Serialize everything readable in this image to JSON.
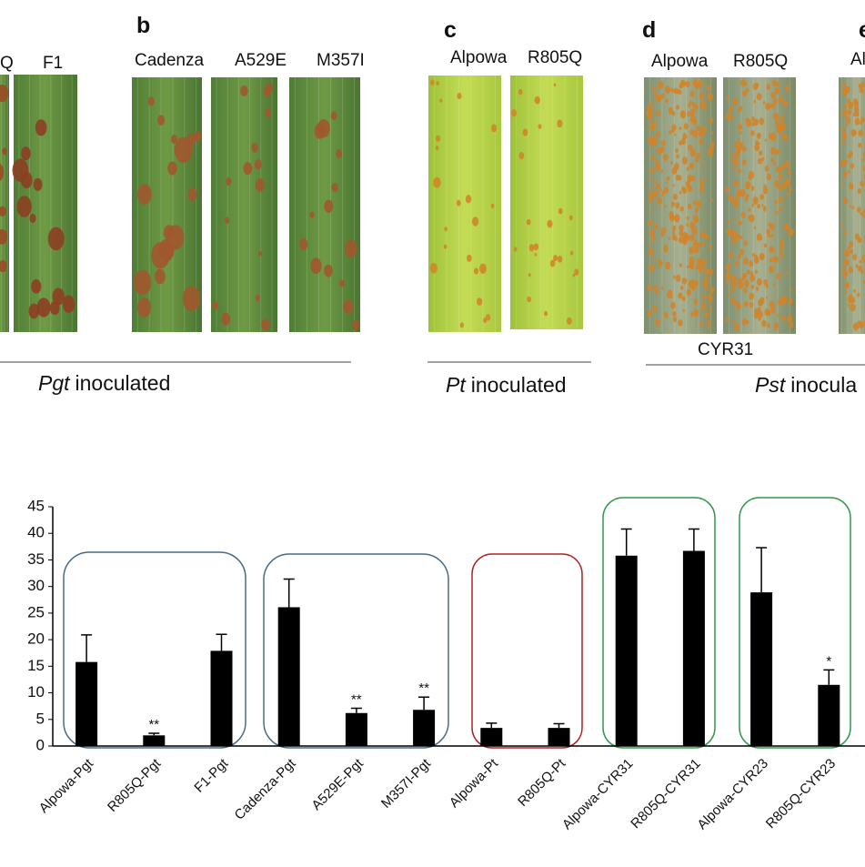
{
  "panels": [
    {
      "labels": [
        "Q",
        "F1"
      ]
    },
    {
      "letter": "b",
      "labels": [
        "Cadenza",
        "A529E",
        "M357I"
      ]
    },
    {
      "letter": "c",
      "labels": [
        "Alpowa",
        "R805Q"
      ]
    },
    {
      "letter": "d",
      "labels": [
        "Alpowa",
        "R805Q"
      ],
      "caption": "CYR31"
    },
    {
      "letter": "e",
      "labels": [
        "Al"
      ]
    }
  ],
  "groups": [
    {
      "italic": "Pgt",
      "text": "inoculated"
    },
    {
      "italic": "Pt",
      "text": "inoculated"
    },
    {
      "italic": "Pst",
      "text": "inocula"
    }
  ],
  "chart_data": {
    "type": "bar",
    "categories": [
      "Alpowa-Pgt",
      "R805Q-Pgt",
      "F1-Pgt",
      "Cadenza-Pgt",
      "A529E-Pgt",
      "M357I-Pgt",
      "Alpowa-Pt",
      "R805Q-Pt",
      "Alpowa-CYR31",
      "R805Q-CYR31",
      "Alpowa-CYR23",
      "R805Q-CYR23"
    ],
    "values": [
      15.8,
      2,
      17.9,
      26.1,
      6.2,
      6.8,
      3.4,
      3.4,
      35.8,
      36.7,
      28.9,
      11.5
    ],
    "errors": [
      5.1,
      0.4,
      3.1,
      5.3,
      0.9,
      2.4,
      0.9,
      0.8,
      5,
      4.1,
      8.4,
      2.8
    ],
    "significance": [
      null,
      "**",
      null,
      null,
      "**",
      "**",
      null,
      null,
      null,
      null,
      null,
      "*"
    ],
    "color": "#000000",
    "ylim": [
      0,
      45
    ],
    "yticks": [
      0,
      5,
      10,
      15,
      20,
      25,
      30,
      35,
      40,
      45
    ]
  }
}
